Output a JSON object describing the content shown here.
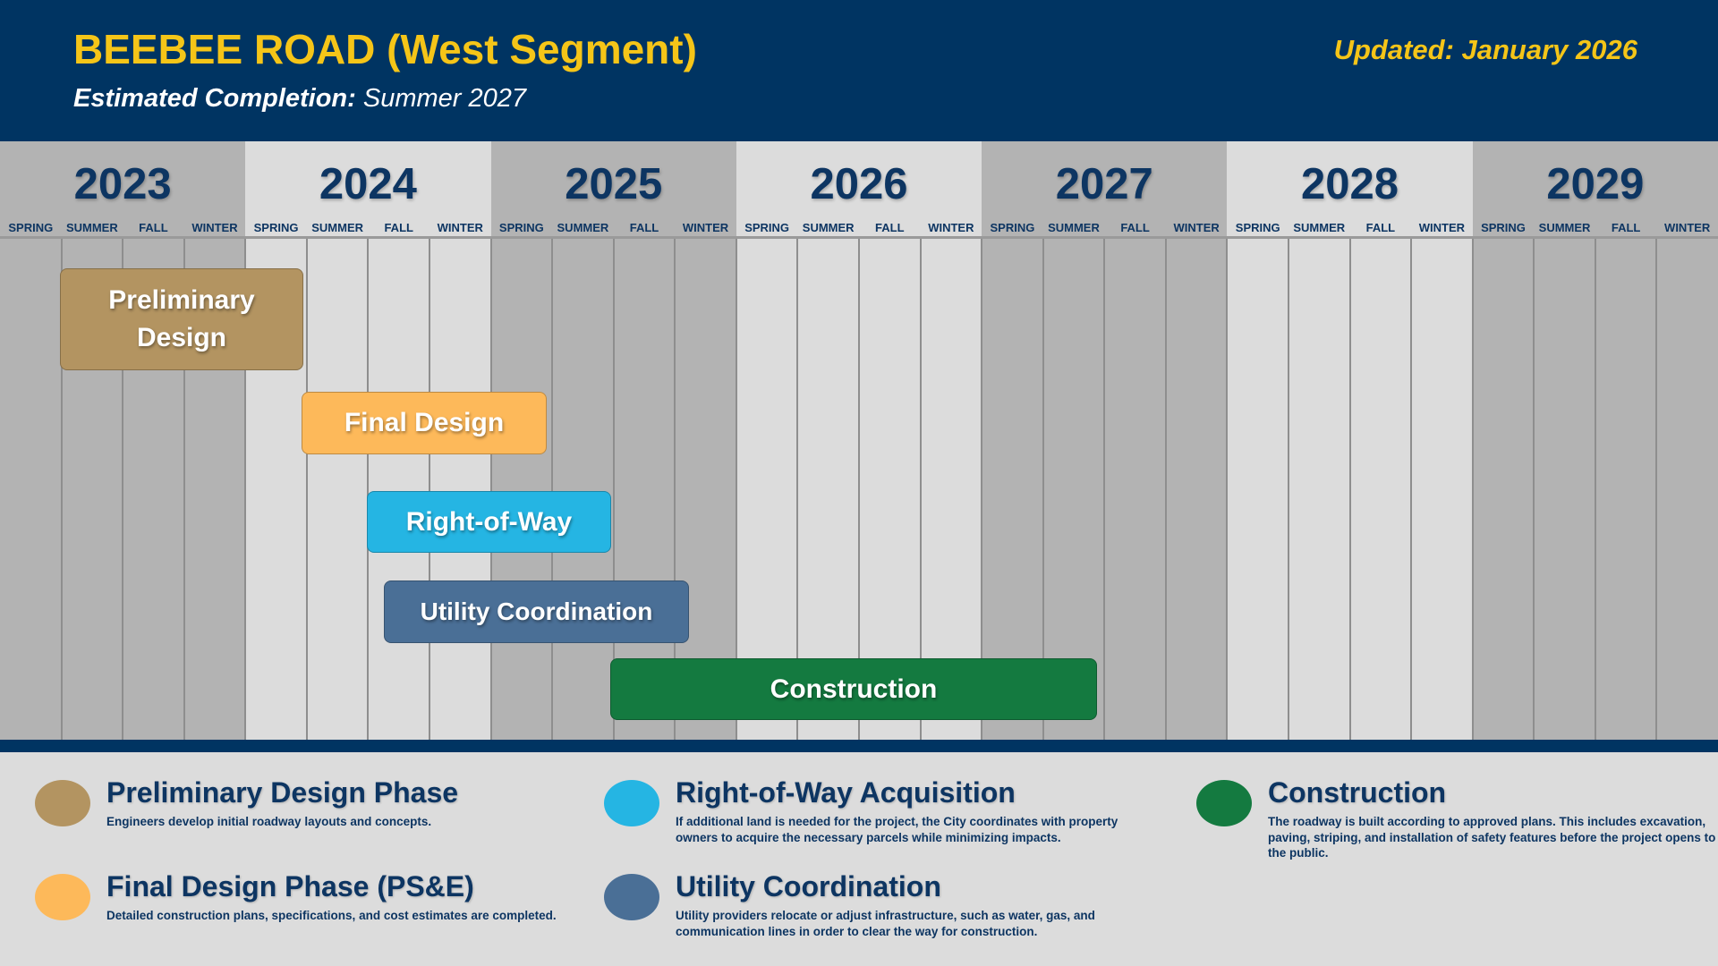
{
  "header": {
    "title": "BEEBEE ROAD (West Segment)",
    "completion_label": "Estimated Completion:",
    "completion_value": "Summer 2027",
    "updated": "Updated: January 2026"
  },
  "timeline": {
    "years": [
      "2023",
      "2024",
      "2025",
      "2026",
      "2027",
      "2028",
      "2029"
    ],
    "seasons": [
      "SPRING",
      "SUMMER",
      "FALL",
      "WINTER"
    ],
    "phases": [
      {
        "label": "Preliminary Design",
        "color": "#b39461"
      },
      {
        "label": "Final Design",
        "color": "#fdb95a"
      },
      {
        "label": "Right-of-Way",
        "color": "#25b5e3"
      },
      {
        "label": "Utility Coordination",
        "color": "#4a6f96"
      },
      {
        "label": "Construction",
        "color": "#147a40"
      }
    ]
  },
  "legend": [
    {
      "title": "Preliminary Design Phase",
      "description": "Engineers develop initial roadway layouts and concepts.",
      "color": "#b39461"
    },
    {
      "title": "Final Design Phase (PS&E)",
      "description": "Detailed construction plans, specifications, and cost estimates are completed.",
      "color": "#fdb95a"
    },
    {
      "title": "Right-of-Way Acquisition",
      "description": "If additional land is needed for the project, the City coordinates with property owners to acquire the necessary parcels while minimizing impacts.",
      "color": "#25b5e3"
    },
    {
      "title": "Utility Coordination",
      "description": "Utility providers relocate or adjust infrastructure, such as water, gas, and communication lines in order to clear the way for construction.",
      "color": "#4a6f96"
    },
    {
      "title": "Construction",
      "description": "The roadway is built according to approved plans. This includes excavation, paving, striping, and installation of safety features before the project opens to the public.",
      "color": "#147a40"
    }
  ]
}
